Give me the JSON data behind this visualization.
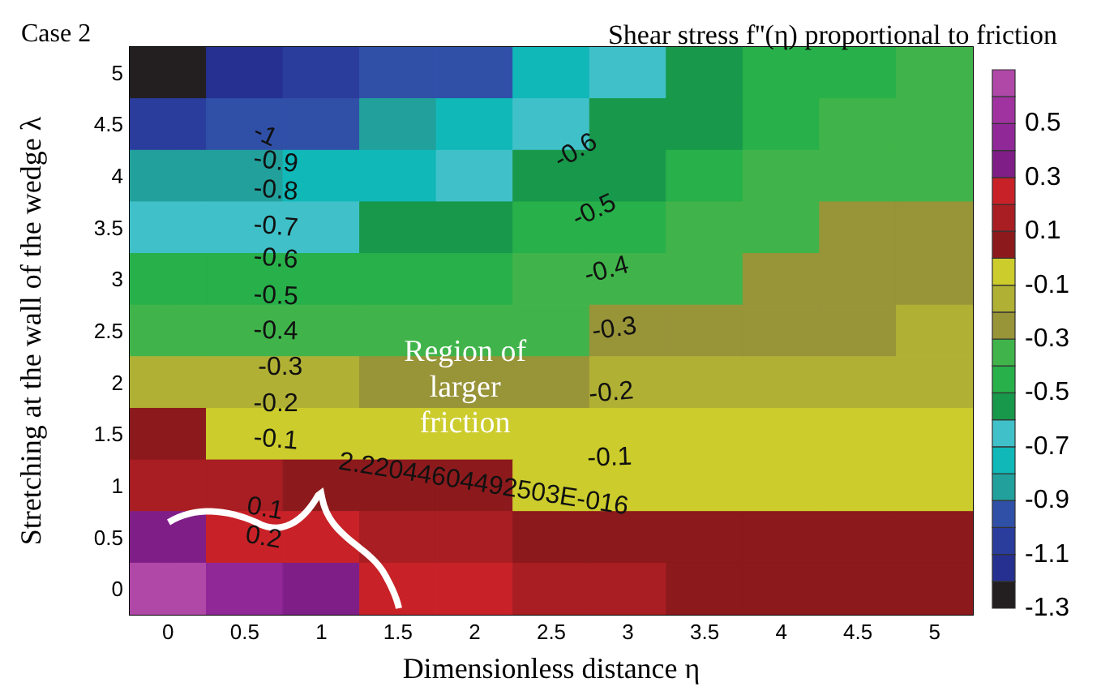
{
  "chart_data": {
    "type": "heatmap",
    "title": "Shear stress f''(η) proportional to friction",
    "xlabel": "Dimensionless distance η",
    "ylabel": "Stretching at the wall of the wedge λ",
    "categories": [
      "0",
      "0.5",
      "1",
      "1.5",
      "2",
      "2.5",
      "3",
      "3.5",
      "4",
      "4.5",
      "5"
    ],
    "y_categories": [
      "5",
      "4.5",
      "4",
      "3.5",
      "3",
      "2.5",
      "2",
      "1.5",
      "1",
      "0.5",
      "0"
    ],
    "cells": [
      [
        -1.26,
        -1.17,
        -1.08,
        -1.0,
        -0.92,
        -0.8,
        -0.67,
        -0.58,
        -0.49,
        -0.42,
        -0.38
      ],
      [
        -1.05,
        -0.99,
        -0.93,
        -0.87,
        -0.8,
        -0.7,
        -0.6,
        -0.52,
        -0.45,
        -0.39,
        -0.35
      ],
      [
        -0.86,
        -0.82,
        -0.78,
        -0.73,
        -0.67,
        -0.6,
        -0.52,
        -0.45,
        -0.39,
        -0.34,
        -0.31
      ],
      [
        -0.68,
        -0.65,
        -0.62,
        -0.59,
        -0.55,
        -0.5,
        -0.44,
        -0.38,
        -0.34,
        -0.3,
        -0.28
      ],
      [
        -0.5,
        -0.48,
        -0.46,
        -0.44,
        -0.42,
        -0.4,
        -0.36,
        -0.32,
        -0.29,
        -0.27,
        -0.25
      ],
      [
        -0.33,
        -0.33,
        -0.33,
        -0.33,
        -0.32,
        -0.31,
        -0.28,
        -0.25,
        -0.23,
        -0.21,
        -0.2
      ],
      [
        -0.17,
        -0.18,
        -0.2,
        -0.21,
        -0.22,
        -0.22,
        -0.2,
        -0.18,
        -0.17,
        -0.16,
        -0.15
      ],
      [
        0.0,
        -0.03,
        -0.06,
        -0.08,
        -0.09,
        -0.1,
        -0.1,
        -0.1,
        -0.1,
        -0.1,
        -0.1
      ],
      [
        0.16,
        0.12,
        0.08,
        0.05,
        0.02,
        -0.01,
        -0.03,
        -0.04,
        -0.05,
        -0.05,
        -0.05
      ],
      [
        0.32,
        0.26,
        0.2,
        0.16,
        0.12,
        0.08,
        0.05,
        0.03,
        0.02,
        0.01,
        0.01
      ],
      [
        0.63,
        0.47,
        0.37,
        0.29,
        0.21,
        0.15,
        0.1,
        0.09,
        0.08,
        0.075,
        0.07
      ]
    ],
    "clim": [
      -1.3,
      0.7
    ],
    "cticks": [
      -1.3,
      -1.1,
      -0.9,
      -0.7,
      -0.5,
      -0.3,
      -0.1,
      0.1,
      0.3,
      0.5
    ],
    "colors": [
      "#231f20",
      "#253090",
      "#2a3c9c",
      "#3050a8",
      "#22a09c",
      "#10b8b8",
      "#40c0c8",
      "#18984a",
      "#28b04a",
      "#40b44a",
      "#989438",
      "#b0b034",
      "#cccc2c",
      "#8c1a1c",
      "#a81e22",
      "#c82228",
      "#801e88",
      "#902898",
      "#a033a0",
      "#b048a8"
    ],
    "annotations": [
      "Case 2",
      "Region of larger friction",
      "-1",
      "-0.9",
      "-0.8",
      "-0.7",
      "-0.6",
      "-0.5",
      "-0.4",
      "-0.3",
      "-0.2",
      "-0.1",
      "2.22044604492503E-016",
      "0.1",
      "0.2",
      "-0.6",
      "-0.5",
      "-0.4",
      "-0.3",
      "-0.2",
      "-0.1"
    ]
  }
}
